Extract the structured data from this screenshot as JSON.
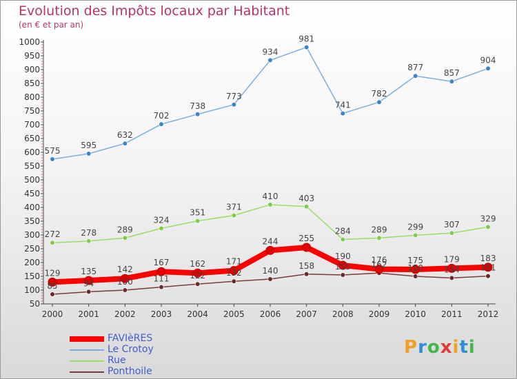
{
  "header": {
    "title": "Evolution des Impôts locaux par Habitant",
    "subtitle": "(en € et par an)"
  },
  "brand": {
    "name": "Proxiti",
    "letters": [
      {
        "ch": "P",
        "color": "#f0a028"
      },
      {
        "ch": "r",
        "color": "#2f8fd6"
      },
      {
        "ch": "o",
        "color": "#45b649"
      },
      {
        "ch": "x",
        "color": "#e23a3a"
      },
      {
        "ch": "i",
        "color": "#f0a028"
      },
      {
        "ch": "t",
        "color": "#2f8fd6"
      },
      {
        "ch": "i",
        "color": "#45b649"
      }
    ]
  },
  "chart_data": {
    "type": "line",
    "title": "Evolution des Impôts locaux par Habitant",
    "subtitle": "(en € et par an)",
    "xlabel": "",
    "ylabel": "",
    "x": [
      "2000",
      "2001",
      "2002",
      "2003",
      "2004",
      "2005",
      "2006",
      "2007",
      "2008",
      "2009",
      "2010",
      "2011",
      "2012"
    ],
    "ylim": [
      50,
      1000
    ],
    "yticks": [
      50,
      100,
      150,
      200,
      250,
      300,
      350,
      400,
      450,
      500,
      550,
      600,
      650,
      700,
      750,
      800,
      850,
      900,
      950,
      1000
    ],
    "grid": false,
    "legend_position": "bottom-left",
    "series": [
      {
        "name": "FAVIèRES",
        "color": "#ff0000",
        "marker": "#e00000",
        "width": 8,
        "radius": 6,
        "values": [
          129,
          135,
          142,
          167,
          162,
          171,
          244,
          255,
          190,
          176,
          175,
          179,
          183
        ],
        "labelDy": -9
      },
      {
        "name": "Le Crotoy",
        "color": "#79aee0",
        "marker": "#3a84c9",
        "width": 1.5,
        "radius": 3.3,
        "values": [
          575,
          595,
          632,
          702,
          738,
          773,
          934,
          981,
          741,
          782,
          877,
          857,
          904
        ],
        "labelDy": -8
      },
      {
        "name": "Rue",
        "color": "#99dd66",
        "marker": "#7fcc4a",
        "width": 1.5,
        "radius": 3.3,
        "values": [
          272,
          278,
          289,
          324,
          351,
          371,
          410,
          403,
          284,
          289,
          299,
          307,
          329
        ],
        "labelDy": -8
      },
      {
        "name": "Ponthoile",
        "color": "#7a3a3a",
        "marker": "#6b2a2a",
        "width": 1.5,
        "radius": 3.3,
        "values": [
          85,
          94,
          100,
          111,
          122,
          132,
          140,
          158,
          155,
          162,
          150,
          144,
          151
        ],
        "labelDy": -8
      }
    ]
  }
}
